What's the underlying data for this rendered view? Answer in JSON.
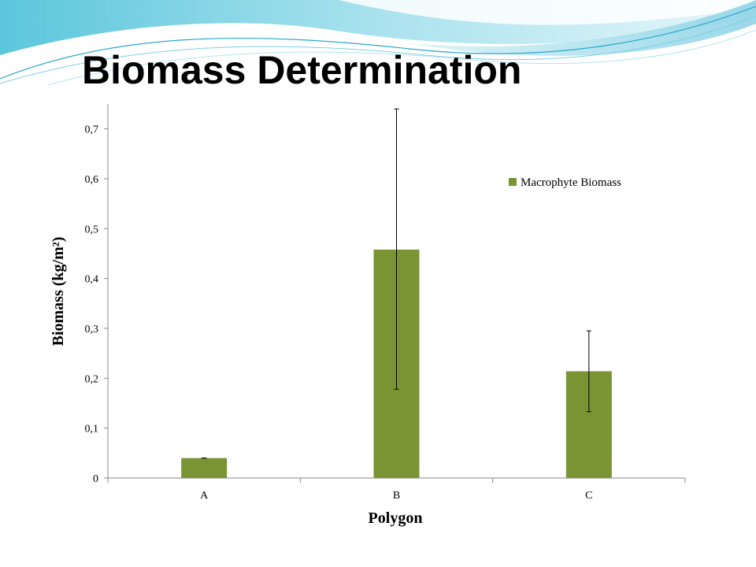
{
  "slide": {
    "title": "Biomass Determination"
  },
  "colors": {
    "bar": "#7a9433",
    "wave_light": "#cfeef4",
    "wave_mid": "#8fd7e6",
    "wave_dark": "#2aa8c8"
  },
  "chart_data": {
    "type": "bar",
    "categories": [
      "A",
      "B",
      "C"
    ],
    "series": [
      {
        "name": "Macrophyte Biomass",
        "values": [
          0.04,
          0.458,
          0.214
        ],
        "error_low": [
          0.04,
          0.178,
          0.133
        ],
        "error_high": [
          0.04,
          0.74,
          0.295
        ]
      }
    ],
    "xlabel": "Polygon",
    "ylabel": "Biomass (kg/m²)",
    "ylim": [
      0,
      0.75
    ],
    "yticks": [
      0,
      0.1,
      0.2,
      0.3,
      0.4,
      0.5,
      0.6,
      0.7
    ],
    "ytick_labels": [
      "0",
      "0,1",
      "0,2",
      "0,3",
      "0,4",
      "0,5",
      "0,6",
      "0,7"
    ],
    "grid": false,
    "legend_position": "right"
  }
}
